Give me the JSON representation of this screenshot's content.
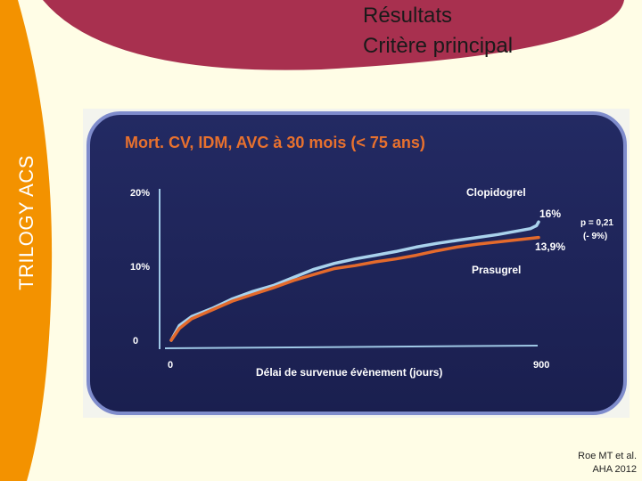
{
  "slide": {
    "title_line1": "Résultats",
    "title_line2": "Critère principal",
    "side_label": "TRILOGY ACS",
    "citation_line1": "Roe MT et al.",
    "citation_line2": "AHA 2012"
  },
  "colors": {
    "header": "#a8304f",
    "side_band": "#f39200",
    "panel": "#1d2358",
    "panel_border": "#7f8ccc",
    "clopidogrel": "#a9d2ec",
    "prasugrel": "#e46a2c",
    "chart_title": "#e8712e"
  },
  "chart_data": {
    "type": "line",
    "title": "Mort. CV, IDM, AVC à 30 mois (< 75 ans)",
    "xlabel": "Délai de survenue évènement (jours)",
    "ylabel": "",
    "xlim": [
      0,
      900
    ],
    "ylim": [
      0,
      20
    ],
    "x_ticks": [
      "0",
      "900"
    ],
    "y_ticks": [
      "0",
      "10%",
      "20%"
    ],
    "series": [
      {
        "name": "Clopidogrel",
        "end_label": "16%",
        "color": "#a9d2ec",
        "x": [
          0,
          20,
          50,
          100,
          150,
          200,
          250,
          300,
          350,
          400,
          450,
          500,
          550,
          600,
          650,
          700,
          750,
          800,
          850,
          880,
          895,
          900
        ],
        "y": [
          0,
          2.0,
          3.2,
          4.3,
          5.6,
          6.6,
          7.4,
          8.5,
          9.6,
          10.4,
          11.0,
          11.5,
          12.0,
          12.6,
          13.1,
          13.5,
          13.9,
          14.3,
          14.8,
          15.1,
          15.5,
          16.0
        ]
      },
      {
        "name": "Prasugrel",
        "end_label": "13,9%",
        "color": "#e46a2c",
        "x": [
          0,
          20,
          50,
          100,
          150,
          200,
          250,
          300,
          350,
          400,
          450,
          500,
          550,
          600,
          650,
          700,
          750,
          800,
          850,
          900
        ],
        "y": [
          0,
          1.6,
          2.9,
          4.1,
          5.3,
          6.2,
          7.1,
          8.1,
          8.9,
          9.7,
          10.1,
          10.6,
          11.0,
          11.5,
          12.1,
          12.6,
          13.0,
          13.3,
          13.6,
          13.9
        ]
      }
    ],
    "annotation_line1": "p = 0,21",
    "annotation_line2": "(- 9%)"
  }
}
